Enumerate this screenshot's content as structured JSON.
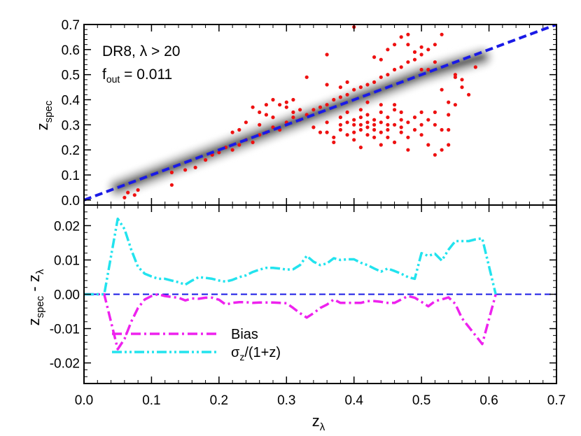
{
  "chart_data": [
    {
      "type": "scatter",
      "title": "",
      "xlabel": "",
      "ylabel": "z_spec",
      "ylabel_main": "z",
      "ylabel_sub": "spec",
      "xlim": [
        0.0,
        0.7
      ],
      "ylim": [
        -0.02,
        0.7
      ],
      "x_ticks": [
        "0.0",
        "0.1",
        "0.2",
        "0.3",
        "0.4",
        "0.5",
        "0.6",
        "0.7"
      ],
      "y_ticks": [
        "0.0",
        "0.1",
        "0.2",
        "0.3",
        "0.4",
        "0.5",
        "0.6",
        "0.7"
      ],
      "annotations": {
        "line1_prefix": "DR8, ",
        "line1_lambda": "λ",
        "line1_suffix": " > 20",
        "line2_f": "f",
        "line2_sub": "out",
        "line2_value": " = 0.011"
      },
      "reference_line": {
        "label": "",
        "x": [
          0.0,
          0.7
        ],
        "y": [
          0.0,
          0.7
        ],
        "style": "dashed",
        "color": "#1a1ae6"
      },
      "density_ridge": {
        "x": [
          0.05,
          0.1,
          0.15,
          0.2,
          0.25,
          0.3,
          0.35,
          0.4,
          0.45,
          0.5,
          0.55,
          0.59
        ],
        "y": [
          0.05,
          0.1,
          0.15,
          0.2,
          0.25,
          0.3,
          0.35,
          0.4,
          0.45,
          0.5,
          0.54,
          0.57
        ]
      },
      "outliers": {
        "color": "#ee1111",
        "points": [
          [
            0.06,
            0.01
          ],
          [
            0.065,
            0.03
          ],
          [
            0.075,
            0.02
          ],
          [
            0.08,
            0.04
          ],
          [
            0.13,
            0.06
          ],
          [
            0.13,
            0.11
          ],
          [
            0.15,
            0.12
          ],
          [
            0.165,
            0.13
          ],
          [
            0.18,
            0.16
          ],
          [
            0.19,
            0.18
          ],
          [
            0.2,
            0.19
          ],
          [
            0.21,
            0.21
          ],
          [
            0.22,
            0.2
          ],
          [
            0.23,
            0.22
          ],
          [
            0.24,
            0.24
          ],
          [
            0.25,
            0.23
          ],
          [
            0.26,
            0.26
          ],
          [
            0.27,
            0.27
          ],
          [
            0.28,
            0.29
          ],
          [
            0.29,
            0.28
          ],
          [
            0.3,
            0.31
          ],
          [
            0.31,
            0.33
          ],
          [
            0.32,
            0.32
          ],
          [
            0.33,
            0.34
          ],
          [
            0.34,
            0.36
          ],
          [
            0.35,
            0.37
          ],
          [
            0.36,
            0.38
          ],
          [
            0.37,
            0.4
          ],
          [
            0.38,
            0.41
          ],
          [
            0.39,
            0.42
          ],
          [
            0.4,
            0.44
          ],
          [
            0.41,
            0.45
          ],
          [
            0.42,
            0.46
          ],
          [
            0.43,
            0.47
          ],
          [
            0.44,
            0.49
          ],
          [
            0.45,
            0.5
          ],
          [
            0.46,
            0.52
          ],
          [
            0.47,
            0.53
          ],
          [
            0.48,
            0.55
          ],
          [
            0.49,
            0.56
          ],
          [
            0.5,
            0.58
          ],
          [
            0.51,
            0.6
          ],
          [
            0.52,
            0.62
          ],
          [
            0.43,
            0.57
          ],
          [
            0.44,
            0.56
          ],
          [
            0.45,
            0.6
          ],
          [
            0.46,
            0.62
          ],
          [
            0.47,
            0.65
          ],
          [
            0.48,
            0.66
          ],
          [
            0.5,
            0.61
          ],
          [
            0.53,
            0.66
          ],
          [
            0.4,
            0.69
          ],
          [
            0.33,
            0.49
          ],
          [
            0.36,
            0.46
          ],
          [
            0.38,
            0.45
          ],
          [
            0.39,
            0.47
          ],
          [
            0.25,
            0.37
          ],
          [
            0.26,
            0.35
          ],
          [
            0.27,
            0.34
          ],
          [
            0.28,
            0.33
          ],
          [
            0.29,
            0.38
          ],
          [
            0.3,
            0.39
          ],
          [
            0.31,
            0.35
          ],
          [
            0.32,
            0.36
          ],
          [
            0.24,
            0.31
          ],
          [
            0.23,
            0.28
          ],
          [
            0.22,
            0.27
          ],
          [
            0.26,
            0.3
          ],
          [
            0.27,
            0.38
          ],
          [
            0.28,
            0.4
          ],
          [
            0.3,
            0.37
          ],
          [
            0.31,
            0.4
          ],
          [
            0.34,
            0.29
          ],
          [
            0.35,
            0.27
          ],
          [
            0.36,
            0.31
          ],
          [
            0.37,
            0.25
          ],
          [
            0.38,
            0.3
          ],
          [
            0.38,
            0.28
          ],
          [
            0.38,
            0.33
          ],
          [
            0.39,
            0.26
          ],
          [
            0.39,
            0.31
          ],
          [
            0.39,
            0.35
          ],
          [
            0.4,
            0.3
          ],
          [
            0.4,
            0.27
          ],
          [
            0.4,
            0.32
          ],
          [
            0.4,
            0.24
          ],
          [
            0.41,
            0.3
          ],
          [
            0.41,
            0.28
          ],
          [
            0.41,
            0.33
          ],
          [
            0.41,
            0.21
          ],
          [
            0.42,
            0.31
          ],
          [
            0.42,
            0.26
          ],
          [
            0.42,
            0.29
          ],
          [
            0.42,
            0.34
          ],
          [
            0.43,
            0.3
          ],
          [
            0.43,
            0.25
          ],
          [
            0.43,
            0.32
          ],
          [
            0.43,
            0.28
          ],
          [
            0.44,
            0.31
          ],
          [
            0.44,
            0.27
          ],
          [
            0.44,
            0.35
          ],
          [
            0.44,
            0.22
          ],
          [
            0.45,
            0.3
          ],
          [
            0.45,
            0.25
          ],
          [
            0.45,
            0.33
          ],
          [
            0.45,
            0.28
          ],
          [
            0.46,
            0.3
          ],
          [
            0.46,
            0.23
          ],
          [
            0.46,
            0.36
          ],
          [
            0.47,
            0.29
          ],
          [
            0.47,
            0.27
          ],
          [
            0.47,
            0.32
          ],
          [
            0.48,
            0.25
          ],
          [
            0.48,
            0.31
          ],
          [
            0.48,
            0.2
          ],
          [
            0.49,
            0.33
          ],
          [
            0.49,
            0.28
          ],
          [
            0.5,
            0.3
          ],
          [
            0.5,
            0.35
          ],
          [
            0.5,
            0.26
          ],
          [
            0.51,
            0.32
          ],
          [
            0.51,
            0.22
          ],
          [
            0.52,
            0.3
          ],
          [
            0.52,
            0.35
          ],
          [
            0.53,
            0.28
          ],
          [
            0.53,
            0.2
          ],
          [
            0.54,
            0.34
          ],
          [
            0.54,
            0.39
          ],
          [
            0.55,
            0.38
          ],
          [
            0.55,
            0.49
          ],
          [
            0.55,
            0.5
          ],
          [
            0.56,
            0.48
          ],
          [
            0.56,
            0.45
          ],
          [
            0.57,
            0.42
          ],
          [
            0.58,
            0.53
          ],
          [
            0.52,
            0.55
          ],
          [
            0.51,
            0.52
          ],
          [
            0.53,
            0.44
          ],
          [
            0.46,
            0.38
          ],
          [
            0.47,
            0.35
          ],
          [
            0.36,
            0.27
          ],
          [
            0.37,
            0.23
          ],
          [
            0.52,
            0.18
          ],
          [
            0.54,
            0.22
          ],
          [
            0.54,
            0.28
          ],
          [
            0.36,
            0.58
          ],
          [
            0.41,
            0.36
          ],
          [
            0.42,
            0.39
          ],
          [
            0.44,
            0.38
          ],
          [
            0.48,
            0.62
          ],
          [
            0.49,
            0.59
          ],
          [
            0.5,
            0.52
          ]
        ]
      }
    },
    {
      "type": "line",
      "title": "",
      "xlabel": "z_λ",
      "xlabel_main": "z",
      "xlabel_sub": "λ",
      "ylabel": "z_spec - z_λ",
      "ylabel_main": "z",
      "ylabel_sub1": "spec",
      "ylabel_mid": " - z",
      "ylabel_sub2": "λ",
      "xlim": [
        0.0,
        0.7
      ],
      "ylim": [
        -0.026,
        0.026
      ],
      "x_ticks": [
        "0.0",
        "0.1",
        "0.2",
        "0.3",
        "0.4",
        "0.5",
        "0.6",
        "0.7"
      ],
      "y_ticks": [
        "-0.02",
        "-0.01",
        "0.00",
        "0.01",
        "0.02"
      ],
      "y_tick_values": [
        -0.02,
        -0.01,
        0.0,
        0.01,
        0.02
      ],
      "zero_line": {
        "y": 0.0,
        "style": "dashed",
        "color": "#1a1ae6"
      },
      "legend": {
        "placement": "lower-left",
        "bias_label": "Bias",
        "sigma_prefix": "σ",
        "sigma_sub": "z",
        "sigma_suffix": "/(1+z)"
      },
      "x": [
        0.0,
        0.03,
        0.05,
        0.06,
        0.07,
        0.08,
        0.09,
        0.1,
        0.11,
        0.12,
        0.13,
        0.14,
        0.15,
        0.16,
        0.17,
        0.18,
        0.19,
        0.2,
        0.21,
        0.22,
        0.23,
        0.24,
        0.25,
        0.26,
        0.27,
        0.28,
        0.29,
        0.3,
        0.31,
        0.32,
        0.33,
        0.34,
        0.35,
        0.36,
        0.37,
        0.38,
        0.39,
        0.4,
        0.41,
        0.42,
        0.43,
        0.44,
        0.45,
        0.46,
        0.47,
        0.48,
        0.49,
        0.5,
        0.51,
        0.52,
        0.53,
        0.54,
        0.55,
        0.56,
        0.57,
        0.58,
        0.59,
        0.61
      ],
      "series": [
        {
          "name": "Bias",
          "color": "#ee22ee",
          "style": "dash-dot",
          "values": [
            0.0,
            0.0,
            -0.016,
            -0.013,
            -0.008,
            -0.004,
            -0.0015,
            -0.0005,
            0.0,
            -0.0005,
            -0.0008,
            -0.001,
            -0.0018,
            -0.0012,
            -0.0013,
            -0.001,
            -0.001,
            -0.0016,
            -0.003,
            -0.0025,
            -0.0023,
            -0.0023,
            -0.0025,
            -0.0024,
            -0.0024,
            -0.0024,
            -0.0025,
            -0.0026,
            -0.004,
            -0.0055,
            -0.0068,
            -0.0055,
            -0.004,
            -0.003,
            -0.0015,
            -0.0025,
            -0.0025,
            -0.0025,
            -0.0025,
            -0.002,
            -0.002,
            -0.0022,
            -0.0025,
            -0.0025,
            -0.0015,
            -0.0005,
            -0.001,
            -0.0022,
            -0.0035,
            -0.002,
            -0.0015,
            -0.0009,
            -0.0028,
            -0.007,
            -0.0095,
            -0.012,
            -0.0145,
            0.0
          ]
        },
        {
          "name": "σz/(1+z)",
          "color": "#22e3ee",
          "style": "dash-dot-dot",
          "values": [
            0.0,
            0.0,
            0.022,
            0.019,
            0.013,
            0.008,
            0.006,
            0.0052,
            0.0045,
            0.0045,
            0.004,
            0.0035,
            0.0028,
            0.004,
            0.005,
            0.0048,
            0.0045,
            0.004,
            0.0037,
            0.0042,
            0.005,
            0.0055,
            0.0065,
            0.0072,
            0.0077,
            0.0077,
            0.0075,
            0.0072,
            0.0073,
            0.0085,
            0.0112,
            0.0095,
            0.0085,
            0.009,
            0.0105,
            0.01,
            0.0102,
            0.0102,
            0.0092,
            0.0085,
            0.0075,
            0.0066,
            0.0075,
            0.0068,
            0.006,
            0.005,
            0.0045,
            0.012,
            0.0112,
            0.0118,
            0.0098,
            0.013,
            0.0155,
            0.0155,
            0.0155,
            0.016,
            0.0163,
            0.0
          ]
        }
      ]
    }
  ]
}
